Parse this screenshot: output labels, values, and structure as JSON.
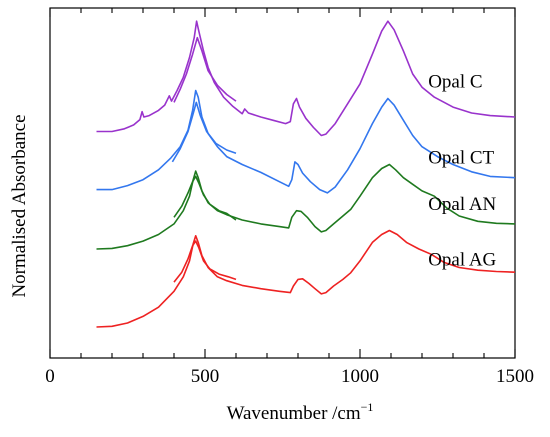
{
  "chart_data": {
    "type": "line",
    "xlabel": "Wavenumber /cm",
    "xlabel_sup": "−1",
    "ylabel": "Normalised Absorbance",
    "xlim": [
      0,
      1500
    ],
    "x_ticks": [
      "0",
      "500",
      "1000",
      "1500"
    ],
    "y_ticks": [],
    "grid": false,
    "legend": "labels next to curves",
    "series": [
      {
        "name": "Opal C",
        "color": "#9933cc",
        "offset": 3.0,
        "label_x": 1220,
        "label_y_off": 0.95,
        "segments": [
          [
            [
              150,
              0.18
            ],
            [
              200,
              0.18
            ],
            [
              240,
              0.22
            ],
            [
              270,
              0.28
            ],
            [
              290,
              0.36
            ],
            [
              297,
              0.48
            ],
            [
              303,
              0.4
            ],
            [
              320,
              0.42
            ],
            [
              350,
              0.5
            ],
            [
              370,
              0.58
            ],
            [
              385,
              0.72
            ],
            [
              392,
              0.64
            ],
            [
              410,
              0.8
            ],
            [
              430,
              1.0
            ],
            [
              450,
              1.3
            ],
            [
              465,
              1.6
            ],
            [
              473,
              1.85
            ],
            [
              480,
              1.7
            ],
            [
              495,
              1.4
            ],
            [
              510,
              1.15
            ],
            [
              530,
              0.92
            ],
            [
              560,
              0.7
            ],
            [
              590,
              0.56
            ],
            [
              620,
              0.45
            ],
            [
              628,
              0.52
            ],
            [
              640,
              0.46
            ],
            [
              680,
              0.4
            ],
            [
              720,
              0.35
            ],
            [
              760,
              0.3
            ],
            [
              775,
              0.33
            ],
            [
              785,
              0.6
            ],
            [
              795,
              0.68
            ],
            [
              805,
              0.55
            ],
            [
              825,
              0.38
            ],
            [
              850,
              0.24
            ],
            [
              875,
              0.12
            ],
            [
              890,
              0.14
            ],
            [
              920,
              0.3
            ],
            [
              960,
              0.6
            ],
            [
              1000,
              0.9
            ],
            [
              1040,
              1.35
            ],
            [
              1070,
              1.7
            ],
            [
              1090,
              1.85
            ],
            [
              1110,
              1.72
            ],
            [
              1140,
              1.4
            ],
            [
              1170,
              1.05
            ],
            [
              1200,
              0.85
            ],
            [
              1240,
              0.7
            ],
            [
              1300,
              0.55
            ],
            [
              1360,
              0.46
            ],
            [
              1420,
              0.42
            ],
            [
              1500,
              0.4
            ]
          ],
          [
            [
              400,
              0.62
            ],
            [
              420,
              0.82
            ],
            [
              440,
              1.05
            ],
            [
              460,
              1.35
            ],
            [
              475,
              1.6
            ],
            [
              490,
              1.4
            ],
            [
              510,
              1.1
            ],
            [
              540,
              0.88
            ],
            [
              570,
              0.74
            ],
            [
              600,
              0.64
            ]
          ]
        ]
      },
      {
        "name": "Opal CT",
        "color": "#3377ee",
        "offset": 2.0,
        "label_x": 1220,
        "label_y_off": 0.8,
        "segments": [
          [
            [
              150,
              0.3
            ],
            [
              200,
              0.3
            ],
            [
              250,
              0.36
            ],
            [
              300,
              0.45
            ],
            [
              350,
              0.6
            ],
            [
              390,
              0.78
            ],
            [
              420,
              0.95
            ],
            [
              445,
              1.2
            ],
            [
              460,
              1.5
            ],
            [
              470,
              1.8
            ],
            [
              478,
              1.7
            ],
            [
              490,
              1.4
            ],
            [
              510,
              1.15
            ],
            [
              540,
              0.95
            ],
            [
              570,
              0.8
            ],
            [
              620,
              0.68
            ],
            [
              680,
              0.56
            ],
            [
              740,
              0.42
            ],
            [
              770,
              0.35
            ],
            [
              780,
              0.45
            ],
            [
              790,
              0.72
            ],
            [
              800,
              0.68
            ],
            [
              815,
              0.55
            ],
            [
              840,
              0.42
            ],
            [
              870,
              0.3
            ],
            [
              895,
              0.25
            ],
            [
              920,
              0.34
            ],
            [
              960,
              0.6
            ],
            [
              1000,
              0.92
            ],
            [
              1040,
              1.3
            ],
            [
              1070,
              1.55
            ],
            [
              1090,
              1.68
            ],
            [
              1110,
              1.58
            ],
            [
              1140,
              1.35
            ],
            [
              1170,
              1.12
            ],
            [
              1200,
              0.95
            ],
            [
              1250,
              0.8
            ],
            [
              1300,
              0.68
            ],
            [
              1360,
              0.57
            ],
            [
              1420,
              0.5
            ],
            [
              1500,
              0.48
            ]
          ],
          [
            [
              395,
              0.72
            ],
            [
              420,
              0.92
            ],
            [
              445,
              1.18
            ],
            [
              460,
              1.42
            ],
            [
              472,
              1.62
            ],
            [
              485,
              1.42
            ],
            [
              505,
              1.18
            ],
            [
              535,
              1.0
            ],
            [
              570,
              0.9
            ],
            [
              600,
              0.85
            ]
          ]
        ]
      },
      {
        "name": "Opal AN",
        "color": "#1f7a1f",
        "offset": 1.0,
        "label_x": 1220,
        "label_y_off": 1.1,
        "segments": [
          [
            [
              150,
              0.4
            ],
            [
              200,
              0.41
            ],
            [
              250,
              0.45
            ],
            [
              300,
              0.52
            ],
            [
              350,
              0.62
            ],
            [
              400,
              0.78
            ],
            [
              430,
              0.98
            ],
            [
              450,
              1.2
            ],
            [
              462,
              1.45
            ],
            [
              470,
              1.58
            ],
            [
              478,
              1.48
            ],
            [
              490,
              1.28
            ],
            [
              510,
              1.1
            ],
            [
              540,
              0.98
            ],
            [
              570,
              0.92
            ],
            [
              620,
              0.84
            ],
            [
              680,
              0.78
            ],
            [
              740,
              0.74
            ],
            [
              770,
              0.72
            ],
            [
              780,
              0.88
            ],
            [
              795,
              0.98
            ],
            [
              810,
              0.97
            ],
            [
              830,
              0.88
            ],
            [
              855,
              0.74
            ],
            [
              875,
              0.66
            ],
            [
              890,
              0.68
            ],
            [
              915,
              0.78
            ],
            [
              945,
              0.9
            ],
            [
              970,
              1.0
            ],
            [
              1000,
              1.2
            ],
            [
              1040,
              1.48
            ],
            [
              1070,
              1.62
            ],
            [
              1095,
              1.68
            ],
            [
              1115,
              1.6
            ],
            [
              1140,
              1.48
            ],
            [
              1170,
              1.38
            ],
            [
              1200,
              1.28
            ],
            [
              1240,
              1.2
            ],
            [
              1280,
              1.02
            ],
            [
              1320,
              0.9
            ],
            [
              1380,
              0.82
            ],
            [
              1440,
              0.79
            ],
            [
              1500,
              0.78
            ]
          ],
          [
            [
              400,
              0.88
            ],
            [
              425,
              1.05
            ],
            [
              445,
              1.25
            ],
            [
              460,
              1.42
            ],
            [
              470,
              1.5
            ],
            [
              480,
              1.4
            ],
            [
              495,
              1.22
            ],
            [
              515,
              1.08
            ],
            [
              545,
              0.98
            ],
            [
              570,
              0.94
            ],
            [
              600,
              0.84
            ]
          ]
        ]
      },
      {
        "name": "Opal AG",
        "color": "#ee2222",
        "offset": 0.0,
        "label_x": 1220,
        "label_y_off": 1.26,
        "segments": [
          [
            [
              150,
              0.22
            ],
            [
              200,
              0.23
            ],
            [
              250,
              0.28
            ],
            [
              300,
              0.38
            ],
            [
              350,
              0.52
            ],
            [
              400,
              0.76
            ],
            [
              430,
              0.98
            ],
            [
              450,
              1.22
            ],
            [
              462,
              1.48
            ],
            [
              470,
              1.6
            ],
            [
              478,
              1.5
            ],
            [
              490,
              1.3
            ],
            [
              510,
              1.12
            ],
            [
              540,
              0.98
            ],
            [
              570,
              0.92
            ],
            [
              620,
              0.85
            ],
            [
              680,
              0.8
            ],
            [
              740,
              0.76
            ],
            [
              775,
              0.74
            ],
            [
              785,
              0.84
            ],
            [
              800,
              0.94
            ],
            [
              815,
              0.95
            ],
            [
              835,
              0.88
            ],
            [
              855,
              0.8
            ],
            [
              875,
              0.72
            ],
            [
              890,
              0.74
            ],
            [
              915,
              0.84
            ],
            [
              945,
              0.94
            ],
            [
              970,
              1.04
            ],
            [
              1000,
              1.22
            ],
            [
              1040,
              1.5
            ],
            [
              1070,
              1.62
            ],
            [
              1095,
              1.68
            ],
            [
              1120,
              1.62
            ],
            [
              1150,
              1.5
            ],
            [
              1190,
              1.4
            ],
            [
              1230,
              1.32
            ],
            [
              1270,
              1.2
            ],
            [
              1320,
              1.12
            ],
            [
              1380,
              1.08
            ],
            [
              1440,
              1.06
            ],
            [
              1500,
              1.05
            ]
          ],
          [
            [
              400,
              0.9
            ],
            [
              425,
              1.05
            ],
            [
              445,
              1.25
            ],
            [
              460,
              1.45
            ],
            [
              470,
              1.52
            ],
            [
              480,
              1.42
            ],
            [
              495,
              1.22
            ],
            [
              515,
              1.1
            ],
            [
              545,
              1.02
            ],
            [
              575,
              0.98
            ],
            [
              600,
              0.94
            ]
          ]
        ]
      }
    ]
  }
}
